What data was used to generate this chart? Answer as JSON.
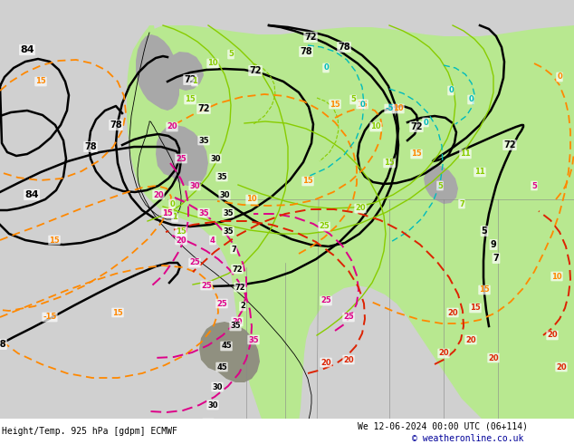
{
  "title_left": "Height/Temp. 925 hPa [gdpm] ECMWF",
  "title_right": "We 12-06-2024 00:00 UTC (06+114)",
  "copyright": "© weatheronline.co.uk",
  "bg_ocean": "#d0d0d0",
  "land_green": "#b8e890",
  "land_gray": "#a8a8a8",
  "fig_width": 6.34,
  "fig_height": 4.9,
  "dpi": 100,
  "black_contour_levels": [
    72,
    78,
    84
  ],
  "green_isotherm_color": "#88cc00",
  "orange_isotherm_color": "#ff8800",
  "cyan_isotherm_color": "#00bbbb",
  "pink_isotherm_color": "#dd0088",
  "red_isotherm_color": "#dd2200"
}
